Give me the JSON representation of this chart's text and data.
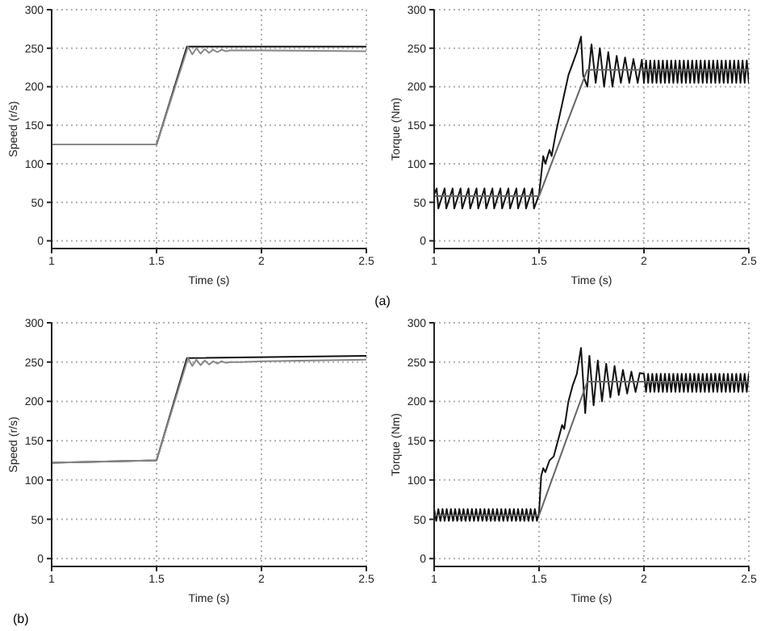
{
  "chart_data": [
    {
      "type": "line",
      "xlabel": "Time (s)",
      "ylabel": "Speed (r/s)",
      "xlim": [
        1,
        2.5
      ],
      "xticks": [
        1,
        1.5,
        2,
        2.5
      ],
      "ylim": [
        -10,
        300
      ],
      "yticks": [
        0,
        50,
        100,
        150,
        200,
        250,
        300
      ],
      "grid": true,
      "legend": false,
      "marker": "none",
      "line_style": "solid",
      "annotations": [
        "(a)"
      ],
      "series": [
        {
          "color": "#111111",
          "x": [
            1,
            1.5,
            1.645,
            2.5
          ],
          "values": [
            125,
            125,
            252,
            252
          ]
        },
        {
          "color": "#888888",
          "x": [
            1,
            1.5,
            1.65,
            1.67,
            1.69,
            1.71,
            1.73,
            1.75,
            1.77,
            1.79,
            1.81,
            1.83,
            1.85,
            1.9,
            2.0,
            2.5
          ],
          "values": [
            125,
            125,
            252,
            242,
            250,
            243,
            249,
            244,
            248,
            245,
            248,
            246,
            247,
            247,
            247,
            246
          ]
        }
      ]
    },
    {
      "type": "line",
      "xlabel": "Time (s)",
      "ylabel": "Torque (Nm)",
      "xlim": [
        1,
        2.5
      ],
      "xticks": [
        1,
        1.5,
        2,
        2.5
      ],
      "ylim": [
        -10,
        300
      ],
      "yticks": [
        0,
        50,
        100,
        150,
        200,
        250,
        300
      ],
      "grid": true,
      "legend": false,
      "marker": "none",
      "line_style": "solid",
      "series": [
        {
          "color": "#111111",
          "x": [
            1.0,
            1.012,
            1.02,
            1.05,
            1.058,
            1.088,
            1.096,
            1.126,
            1.134,
            1.164,
            1.172,
            1.202,
            1.21,
            1.24,
            1.248,
            1.278,
            1.286,
            1.316,
            1.324,
            1.354,
            1.362,
            1.392,
            1.4,
            1.43,
            1.438,
            1.468,
            1.476,
            1.5,
            1.52,
            1.53,
            1.55,
            1.56,
            1.58,
            1.6,
            1.62,
            1.64,
            1.66,
            1.68,
            1.7,
            1.71,
            1.73,
            1.75,
            1.77,
            1.79,
            1.81,
            1.83,
            1.85,
            1.87,
            1.89,
            1.91,
            1.93,
            1.95,
            1.97,
            1.99,
            2.0,
            2.01,
            2.02,
            2.03,
            2.04,
            2.05,
            2.06,
            2.07,
            2.08,
            2.09,
            2.1,
            2.11,
            2.12,
            2.13,
            2.14,
            2.15,
            2.16,
            2.17,
            2.18,
            2.19,
            2.2,
            2.21,
            2.22,
            2.23,
            2.24,
            2.25,
            2.26,
            2.27,
            2.28,
            2.29,
            2.3,
            2.31,
            2.32,
            2.33,
            2.34,
            2.35,
            2.36,
            2.37,
            2.38,
            2.39,
            2.4,
            2.41,
            2.42,
            2.43,
            2.44,
            2.45,
            2.46,
            2.47,
            2.48,
            2.49,
            2.5
          ],
          "values": [
            60,
            68,
            42,
            68,
            42,
            68,
            42,
            68,
            42,
            68,
            42,
            68,
            42,
            68,
            42,
            68,
            42,
            68,
            42,
            68,
            42,
            68,
            42,
            68,
            42,
            68,
            42,
            60,
            110,
            100,
            118,
            110,
            140,
            165,
            190,
            215,
            230,
            245,
            265,
            215,
            200,
            255,
            205,
            250,
            200,
            245,
            200,
            240,
            205,
            238,
            205,
            236,
            205,
            235,
            205,
            234,
            205,
            234,
            205,
            234,
            205,
            234,
            205,
            234,
            205,
            234,
            205,
            234,
            205,
            234,
            205,
            234,
            205,
            234,
            205,
            234,
            205,
            234,
            205,
            234,
            205,
            234,
            205,
            234,
            205,
            234,
            205,
            234,
            205,
            234,
            205,
            234,
            205,
            234,
            205,
            234,
            205,
            234,
            205,
            234,
            205,
            234,
            205,
            234,
            205
          ]
        },
        {
          "color": "#666666",
          "x": [
            1,
            1.5,
            1.73,
            2.5
          ],
          "values": [
            58,
            58,
            222,
            222
          ]
        }
      ]
    },
    {
      "type": "line",
      "xlabel": "Time (s)",
      "ylabel": "Speed (r/s)",
      "xlim": [
        1,
        2.5
      ],
      "xticks": [
        1,
        1.5,
        2,
        2.5
      ],
      "ylim": [
        -10,
        300
      ],
      "yticks": [
        0,
        50,
        100,
        150,
        200,
        250,
        300
      ],
      "grid": true,
      "legend": false,
      "marker": "none",
      "line_style": "solid",
      "annotations": [
        "(b)"
      ],
      "series": [
        {
          "color": "#111111",
          "x": [
            1,
            1.5,
            1.645,
            2.5
          ],
          "values": [
            122,
            125,
            255,
            258
          ]
        },
        {
          "color": "#888888",
          "x": [
            1,
            1.5,
            1.65,
            1.67,
            1.69,
            1.71,
            1.73,
            1.75,
            1.77,
            1.79,
            1.81,
            1.83,
            1.85,
            1.9,
            2.0,
            2.5
          ],
          "values": [
            122,
            125,
            255,
            245,
            253,
            246,
            252,
            247,
            251,
            248,
            251,
            249,
            250,
            250,
            251,
            253
          ]
        }
      ]
    },
    {
      "type": "line",
      "xlabel": "Time (s)",
      "ylabel": "Torque (Nm)",
      "xlim": [
        1,
        2.5
      ],
      "xticks": [
        1,
        1.5,
        2,
        2.5
      ],
      "ylim": [
        -10,
        300
      ],
      "yticks": [
        0,
        50,
        100,
        150,
        200,
        250,
        300
      ],
      "grid": true,
      "legend": false,
      "marker": "none",
      "line_style": "solid",
      "series": [
        {
          "color": "#111111",
          "x": [
            1.0,
            1.01,
            1.02,
            1.03,
            1.04,
            1.05,
            1.06,
            1.07,
            1.08,
            1.09,
            1.1,
            1.11,
            1.12,
            1.13,
            1.14,
            1.15,
            1.16,
            1.17,
            1.18,
            1.19,
            1.2,
            1.21,
            1.22,
            1.23,
            1.24,
            1.25,
            1.26,
            1.27,
            1.28,
            1.29,
            1.3,
            1.31,
            1.32,
            1.33,
            1.34,
            1.35,
            1.36,
            1.37,
            1.38,
            1.39,
            1.4,
            1.41,
            1.42,
            1.43,
            1.44,
            1.45,
            1.46,
            1.47,
            1.48,
            1.49,
            1.5,
            1.51,
            1.52,
            1.53,
            1.55,
            1.57,
            1.59,
            1.61,
            1.62,
            1.64,
            1.66,
            1.68,
            1.7,
            1.72,
            1.74,
            1.76,
            1.78,
            1.8,
            1.82,
            1.84,
            1.86,
            1.88,
            1.9,
            1.92,
            1.94,
            1.96,
            1.98,
            2.0,
            2.01,
            2.02,
            2.03,
            2.04,
            2.05,
            2.06,
            2.07,
            2.08,
            2.09,
            2.1,
            2.11,
            2.12,
            2.13,
            2.14,
            2.15,
            2.16,
            2.17,
            2.18,
            2.19,
            2.2,
            2.21,
            2.22,
            2.23,
            2.24,
            2.25,
            2.26,
            2.27,
            2.28,
            2.29,
            2.3,
            2.31,
            2.32,
            2.33,
            2.34,
            2.35,
            2.36,
            2.37,
            2.38,
            2.39,
            2.4,
            2.41,
            2.42,
            2.43,
            2.44,
            2.45,
            2.46,
            2.47,
            2.48,
            2.49,
            2.5
          ],
          "values": [
            63,
            48,
            63,
            48,
            63,
            48,
            63,
            48,
            63,
            48,
            63,
            48,
            63,
            48,
            63,
            48,
            63,
            48,
            63,
            48,
            63,
            48,
            63,
            48,
            63,
            48,
            63,
            48,
            63,
            48,
            63,
            48,
            63,
            48,
            63,
            48,
            63,
            48,
            63,
            48,
            63,
            48,
            63,
            48,
            63,
            48,
            63,
            48,
            63,
            48,
            58,
            105,
            115,
            110,
            125,
            130,
            150,
            170,
            165,
            200,
            220,
            235,
            268,
            185,
            258,
            195,
            252,
            200,
            248,
            205,
            245,
            208,
            240,
            210,
            238,
            212,
            236,
            235,
            212,
            235,
            212,
            235,
            212,
            235,
            212,
            235,
            212,
            235,
            212,
            235,
            212,
            235,
            212,
            235,
            212,
            235,
            212,
            235,
            212,
            235,
            212,
            235,
            212,
            235,
            212,
            235,
            212,
            235,
            212,
            235,
            212,
            235,
            212,
            235,
            212,
            235,
            212,
            235,
            212,
            235,
            212,
            235,
            212,
            235,
            212,
            235,
            212,
            235
          ]
        },
        {
          "color": "#666666",
          "x": [
            1,
            1.5,
            1.73,
            2.5
          ],
          "values": [
            55,
            55,
            225,
            225
          ]
        }
      ]
    }
  ]
}
